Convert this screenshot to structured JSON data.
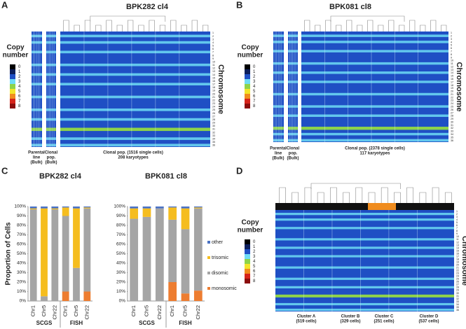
{
  "panels": [
    {
      "letter": "A",
      "title": "BPK282 cl4",
      "legend": {
        "title": [
          "Copy",
          "number"
        ],
        "labels": [
          "0",
          "1",
          "2",
          "3",
          "4",
          "5",
          "6",
          "7",
          "8"
        ],
        "colors": [
          "#000000",
          "#0d1f5c",
          "#1f4fc4",
          "#6fdcf5",
          "#8ed34a",
          "#f2e52b",
          "#f08c1e",
          "#d6241a",
          "#8b0d0d"
        ]
      },
      "chromosome_label": "Chromosome",
      "chromosomes": [
        "1",
        "2",
        "3",
        "4",
        "5",
        "6",
        "7",
        "8",
        "9",
        "10",
        "11",
        "12",
        "13",
        "14",
        "15",
        "16",
        "17",
        "18",
        "19",
        "20",
        "21",
        "22",
        "23",
        "24",
        "25",
        "26",
        "27",
        "28",
        "29",
        "30",
        "31",
        "32",
        "33",
        "34",
        "35",
        "36"
      ],
      "bottom_labels": [
        [
          "Parental",
          "line",
          "(Bulk)"
        ],
        [
          "Clonal",
          "pop.",
          "(Bulk)"
        ],
        [
          "Clonal pop. (1516 single cells)",
          "208 karyotypes"
        ]
      ]
    },
    {
      "letter": "B",
      "title": "BPK081 cl8",
      "legend": {
        "title": [
          "Copy",
          "number"
        ],
        "labels": [
          "0",
          "1",
          "2",
          "3",
          "4",
          "5",
          "6",
          "7",
          "8"
        ],
        "colors": [
          "#000000",
          "#0d1f5c",
          "#1f4fc4",
          "#6fdcf5",
          "#8ed34a",
          "#f2e52b",
          "#f08c1e",
          "#d6241a",
          "#8b0d0d"
        ]
      },
      "chromosome_label": "Chromosome",
      "chromosomes": [
        "1",
        "2",
        "3",
        "4",
        "5",
        "6",
        "7",
        "8",
        "9",
        "10",
        "11",
        "12",
        "13",
        "14",
        "15",
        "16",
        "17",
        "18",
        "19",
        "20",
        "21",
        "22",
        "23",
        "24",
        "25",
        "26",
        "27",
        "28",
        "29",
        "30",
        "31",
        "32",
        "33",
        "34",
        "35",
        "36"
      ],
      "bottom_labels": [
        [
          "Parental",
          "line",
          "(Bulk)"
        ],
        [
          "Clonal",
          "pop.",
          "(Bulk)"
        ],
        [
          "Clonal pop. (2378 single cells)",
          "117 karyotypes"
        ]
      ]
    },
    {
      "letter": "D",
      "legend": {
        "title": [
          "Copy",
          "number"
        ],
        "labels": [
          "0",
          "1",
          "2",
          "3",
          "4",
          "5",
          "6",
          "7",
          "8"
        ],
        "colors": [
          "#000000",
          "#0d1f5c",
          "#1f4fc4",
          "#6fdcf5",
          "#8ed34a",
          "#f2e52b",
          "#f08c1e",
          "#d6241a",
          "#8b0d0d"
        ]
      },
      "chromosome_label": "Chromosome",
      "chromosomes": [
        "1",
        "2",
        "3",
        "4",
        "5",
        "6",
        "7",
        "8",
        "9",
        "10",
        "11",
        "12",
        "13",
        "14",
        "15",
        "16",
        "17",
        "18",
        "19",
        "20",
        "21",
        "22",
        "23",
        "24",
        "25",
        "26",
        "27",
        "28",
        "29",
        "30",
        "31",
        "32",
        "33",
        "34",
        "35",
        "36"
      ],
      "bottom_labels": [
        [
          "Cluster A",
          "(519 cells)"
        ],
        [
          "Cluster B",
          "(329 cells)"
        ],
        [
          "Cluster C",
          "(251 cells)"
        ],
        [
          "Cluster D",
          "(537 cells)"
        ]
      ]
    }
  ],
  "panel_c_letter": "C",
  "chart_data": [
    {
      "type": "bar",
      "stacked": true,
      "title": "BPK282 cl4",
      "y_label": "Proportion of Cells",
      "categories": [
        "Chr1",
        "Chr5",
        "Chr22",
        "Chr1",
        "Chr5",
        "Chr22"
      ],
      "groups": [
        "SCGS",
        "FISH"
      ],
      "series": [
        {
          "color": "#4a72c4",
          "values": [
            2,
            2,
            2,
            1,
            2,
            1
          ]
        },
        {
          "color": "#f5bd1f",
          "values": [
            1,
            93,
            1,
            9,
            63,
            1
          ]
        },
        {
          "color": "#a5a5a5",
          "values": [
            97,
            5,
            97,
            80,
            35,
            88
          ]
        },
        {
          "color": "#ed7d31",
          "values": [
            0,
            0,
            0,
            10,
            0,
            10
          ]
        }
      ],
      "ylim": [
        0,
        100
      ],
      "yticks": [
        {
          "value": 0,
          "label": "0%"
        },
        {
          "value": 10,
          "label": "10%"
        },
        {
          "value": 20,
          "label": "20%"
        },
        {
          "value": 30,
          "label": "30%"
        },
        {
          "value": 40,
          "label": "40%"
        },
        {
          "value": 50,
          "label": "50%"
        },
        {
          "value": 60,
          "label": "60%"
        },
        {
          "value": 70,
          "label": "70%"
        },
        {
          "value": 80,
          "label": "80%"
        },
        {
          "value": 90,
          "label": "90%"
        },
        {
          "value": 100,
          "label": "100%"
        }
      ]
    },
    {
      "type": "bar",
      "stacked": true,
      "title": "BPK081 cl8",
      "categories": [
        "Chr1",
        "Chr5",
        "Chr22",
        "Chr1",
        "Chr5",
        "Chr22"
      ],
      "groups": [
        "SCGS",
        "FISH"
      ],
      "series": [
        {
          "name": "other",
          "color": "#4a72c4",
          "values": [
            2,
            2,
            2,
            1,
            2,
            1
          ]
        },
        {
          "name": "trisomic",
          "color": "#f5bd1f",
          "values": [
            11,
            9,
            0,
            13,
            22,
            1
          ]
        },
        {
          "name": "disomic",
          "color": "#a5a5a5",
          "values": [
            87,
            89,
            98,
            66,
            68,
            87
          ]
        },
        {
          "name": "monosomic",
          "color": "#ed7d31",
          "values": [
            0,
            0,
            0,
            20,
            8,
            11
          ]
        }
      ],
      "legend": "right",
      "ylim": [
        0,
        100
      ],
      "yticks": [
        {
          "value": 0,
          "label": "0%"
        },
        {
          "value": 10,
          "label": "10%"
        },
        {
          "value": 20,
          "label": "20%"
        },
        {
          "value": 30,
          "label": "30%"
        },
        {
          "value": 40,
          "label": "40%"
        },
        {
          "value": 50,
          "label": "50%"
        },
        {
          "value": 60,
          "label": "60%"
        },
        {
          "value": 70,
          "label": "70%"
        },
        {
          "value": 80,
          "label": "80%"
        },
        {
          "value": 90,
          "label": "90%"
        },
        {
          "value": 100,
          "label": "100%"
        }
      ]
    }
  ]
}
